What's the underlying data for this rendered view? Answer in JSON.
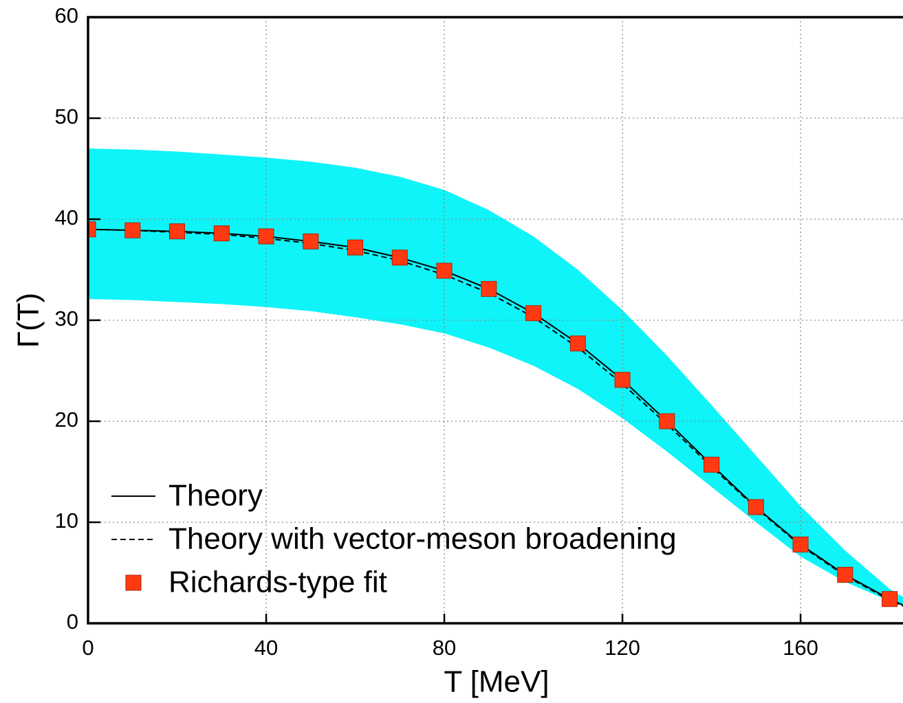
{
  "chart_data": {
    "type": "line",
    "xlabel": "T [MeV]",
    "ylabel": "Γ(T)",
    "xlim": [
      0,
      183
    ],
    "ylim": [
      0,
      60
    ],
    "xticks": [
      0,
      40,
      80,
      120,
      160
    ],
    "yticks": [
      0,
      10,
      20,
      30,
      40,
      50,
      60
    ],
    "grid": true,
    "legend": "lower left",
    "band": {
      "color": "#0ef4f8",
      "x": [
        0,
        10,
        20,
        30,
        40,
        50,
        60,
        70,
        80,
        90,
        100,
        110,
        120,
        130,
        140,
        150,
        160,
        170,
        180,
        183
      ],
      "upper": [
        47.0,
        46.9,
        46.7,
        46.4,
        46.1,
        45.7,
        45.1,
        44.2,
        42.9,
        40.9,
        38.3,
        35.0,
        31.0,
        26.5,
        21.6,
        16.6,
        11.6,
        7.2,
        3.4,
        2.6
      ],
      "lower": [
        32.1,
        32.0,
        31.8,
        31.6,
        31.3,
        30.9,
        30.3,
        29.6,
        28.7,
        27.3,
        25.5,
        23.2,
        20.3,
        17.0,
        13.5,
        10.0,
        6.6,
        4.1,
        2.2,
        1.7
      ]
    },
    "series": [
      {
        "name": "Theory",
        "style": "solid",
        "color": "#000000",
        "x": [
          0,
          10,
          20,
          30,
          40,
          50,
          60,
          70,
          80,
          90,
          100,
          110,
          120,
          130,
          140,
          150,
          160,
          170,
          180,
          183
        ],
        "values": [
          39.0,
          38.9,
          38.8,
          38.6,
          38.3,
          37.8,
          37.2,
          36.2,
          34.9,
          33.1,
          30.7,
          27.7,
          24.1,
          20.0,
          15.7,
          11.5,
          7.8,
          4.8,
          2.4,
          1.8
        ]
      },
      {
        "name": "Theory with vector-meson broadening",
        "style": "dashed",
        "color": "#000000",
        "x": [
          0,
          10,
          20,
          30,
          40,
          50,
          60,
          70,
          80,
          90,
          100,
          110,
          120,
          130,
          140,
          150,
          160,
          170,
          180,
          183
        ],
        "values": [
          39.0,
          38.9,
          38.7,
          38.5,
          38.1,
          37.6,
          36.9,
          35.9,
          34.5,
          32.7,
          30.3,
          27.3,
          23.7,
          19.7,
          15.5,
          11.4,
          7.7,
          4.7,
          2.3,
          1.7
        ]
      },
      {
        "name": "Richards-type fit",
        "style": "markers",
        "color": "#ff3a12",
        "x": [
          0,
          10,
          20,
          30,
          40,
          50,
          60,
          70,
          80,
          90,
          100,
          110,
          120,
          130,
          140,
          150,
          160,
          170,
          180
        ],
        "values": [
          39.0,
          38.9,
          38.8,
          38.6,
          38.3,
          37.8,
          37.2,
          36.2,
          34.9,
          33.1,
          30.7,
          27.7,
          24.1,
          20.0,
          15.7,
          11.5,
          7.8,
          4.8,
          2.4
        ]
      }
    ]
  }
}
